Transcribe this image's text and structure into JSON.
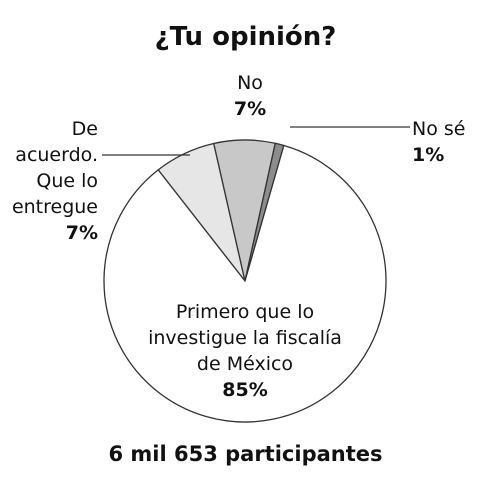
{
  "chart_data": {
    "type": "pie",
    "title": "¿Tu opinión?",
    "categories": [
      "De acuerdo. Que lo entregue",
      "No",
      "No sé",
      "Primero que lo investigue la fiscalía de México"
    ],
    "values": [
      7,
      7,
      1,
      85
    ],
    "value_labels": [
      "7%",
      "7%",
      "1%",
      "85%"
    ],
    "colors": [
      "#e6e6e6",
      "#c8c8c8",
      "#8c8c8c",
      "#ffffff"
    ],
    "caption": "6 mil 653 participantes"
  }
}
